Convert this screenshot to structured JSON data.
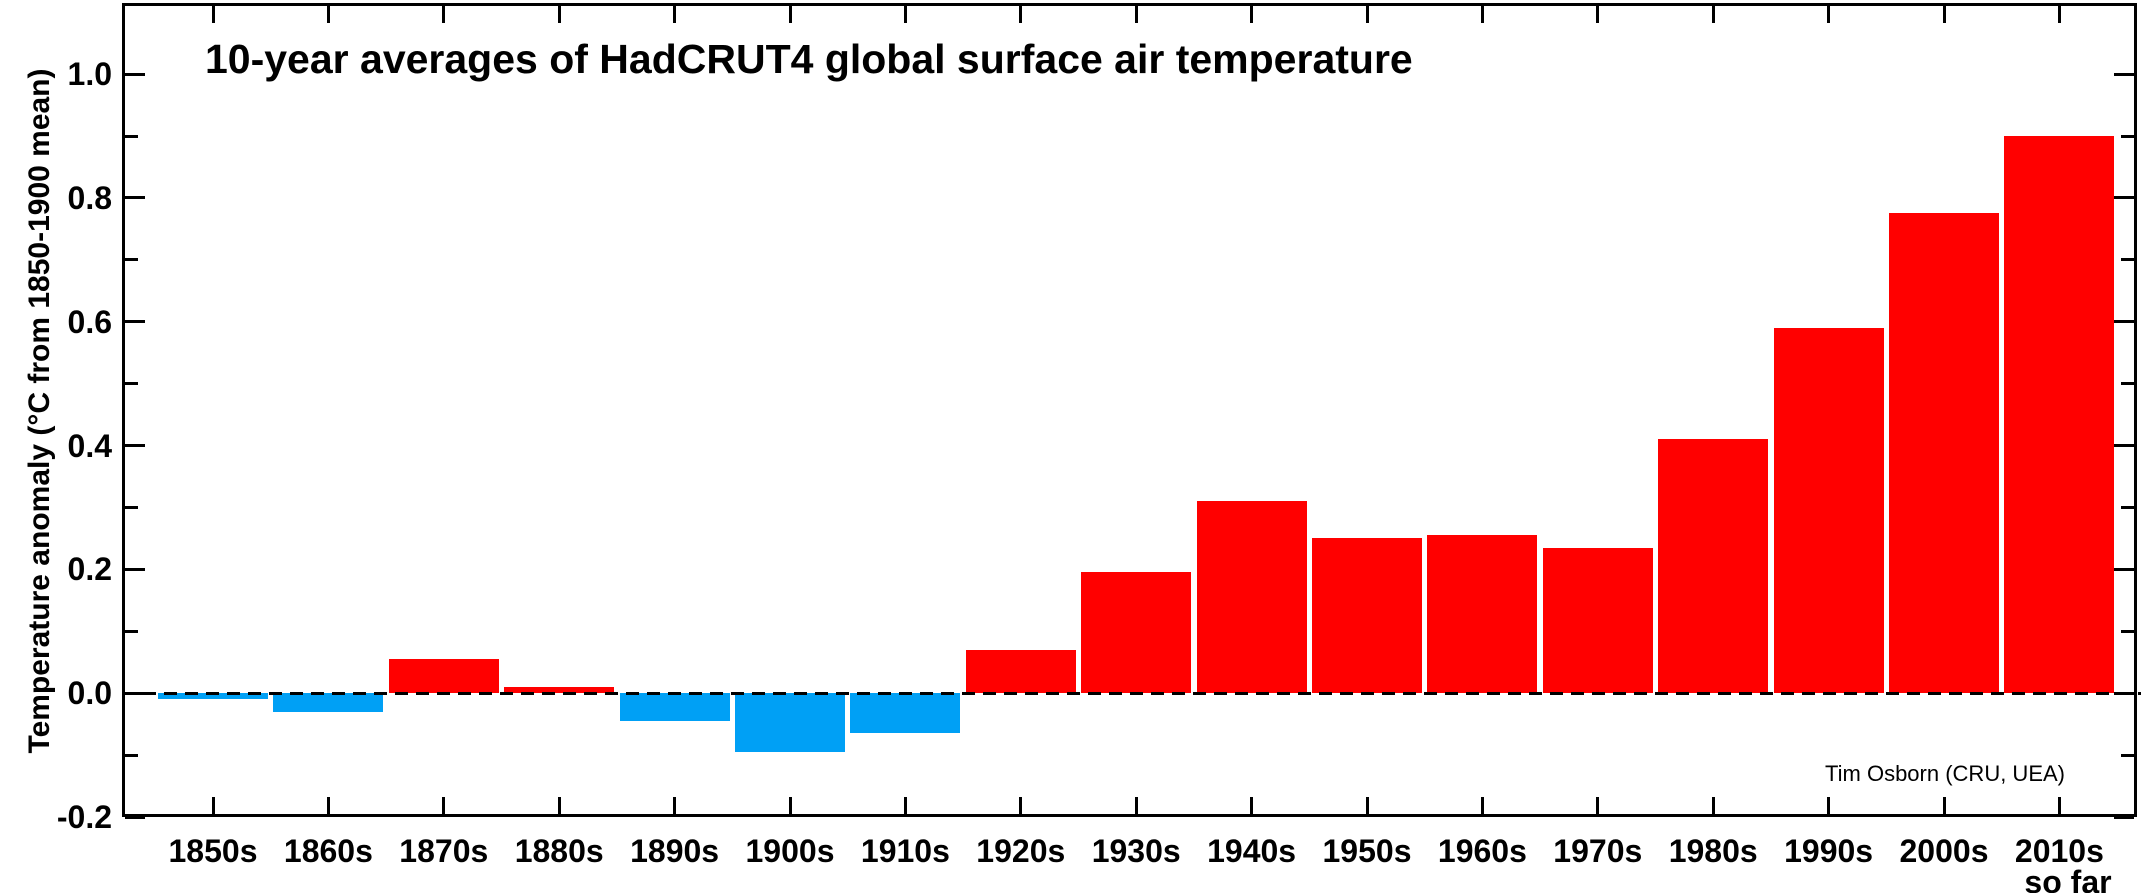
{
  "title": "10-year averages of HadCRUT4 global surface air temperature",
  "attribution": "Tim Osborn (CRU, UEA)",
  "y_axis": {
    "label": "Temperature anomaly (°C from 1850-1900 mean)",
    "major_tick_values": [
      -0.2,
      0.0,
      0.2,
      0.4,
      0.6,
      0.8,
      1.0
    ],
    "major_tick_labels": [
      "-0.2",
      "0.0",
      "0.2",
      "0.4",
      "0.6",
      "0.8",
      "1.0"
    ],
    "minor_tick_values": [
      -0.1,
      0.1,
      0.3,
      0.5,
      0.7,
      0.9
    ]
  },
  "x_axis": {
    "note": "so far"
  },
  "colors": {
    "positive_bar": "#FF0000",
    "negative_bar": "#00A0F5",
    "axis": "#000000",
    "background": "#FFFFFF"
  },
  "chart_data": {
    "type": "bar",
    "categories": [
      "1850s",
      "1860s",
      "1870s",
      "1880s",
      "1890s",
      "1900s",
      "1910s",
      "1920s",
      "1930s",
      "1940s",
      "1950s",
      "1960s",
      "1970s",
      "1980s",
      "1990s",
      "2000s",
      "2010s"
    ],
    "values": [
      -0.01,
      -0.03,
      0.055,
      0.01,
      -0.045,
      -0.095,
      -0.065,
      0.07,
      0.195,
      0.31,
      0.25,
      0.255,
      0.235,
      0.41,
      0.59,
      0.775,
      0.9
    ],
    "title": "10-year averages of HadCRUT4 global surface air temperature",
    "xlabel": "",
    "ylabel": "Temperature anomaly (°C from 1850-1900 mean)",
    "ylim": [
      -0.2,
      1.115
    ],
    "zero_line": "dashed",
    "grid": false,
    "legend": "none",
    "bar_color_rule": "red above zero, blue below zero",
    "last_bar_note": "so far"
  }
}
